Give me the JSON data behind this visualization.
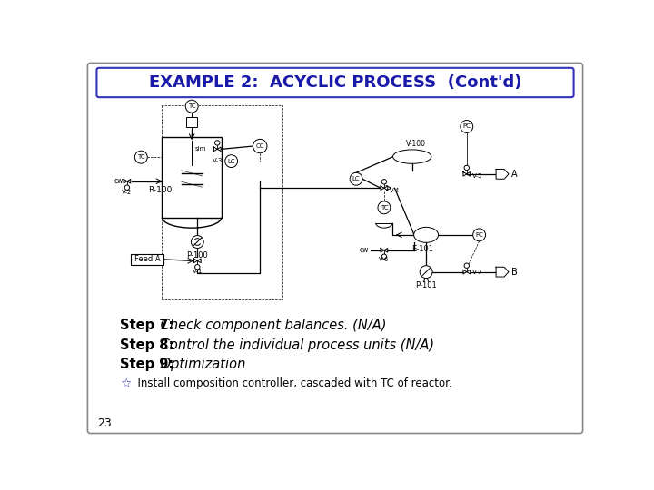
{
  "title": "EXAMPLE 2:  ACYCLIC PROCESS  (Cont'd)",
  "title_color": "#1a1aaa",
  "background_color": "#ffffff",
  "slide_bg": "#ffffff",
  "step7_bold": "Step 7:",
  "step7_italic": " Check component balances. (N/A)",
  "step8_bold": "Step 8:",
  "step8_italic": " Control the individual process units (N/A)",
  "step9_bold": "Step 9:",
  "step9_italic": " Optimization",
  "bullet_text": "  Install composition controller, cascaded with TC of reactor.",
  "page_number": "23",
  "text_color": "#000000",
  "border_color": "#888888",
  "title_border": "#3333bb"
}
